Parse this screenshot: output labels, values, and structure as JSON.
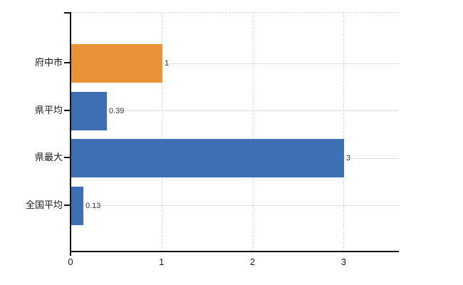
{
  "chart": {
    "background_color": "#ffffff",
    "axis_color": "#111111",
    "horizontal_gridline_color": "#dce1dc",
    "vertical_gridline_color": "#d6d9de",
    "category_label_color": "#1a1a1a",
    "value_label_color": "#333333"
  },
  "chart_data": {
    "type": "bar",
    "orientation": "horizontal",
    "title": "",
    "categories": [
      "府中市",
      "県平均",
      "県最大",
      "全国平均"
    ],
    "values": [
      1,
      0.39,
      3,
      0.13
    ],
    "value_labels": [
      "1",
      "0.39",
      "3",
      "0.13"
    ],
    "bar_colors": [
      "#ec9236",
      "#3d6fb2",
      "#3d6fb2",
      "#3d6fb2"
    ],
    "accent_orange": "#ec9236",
    "accent_blue": "#3d6fb2",
    "x_ticks": [
      0,
      1,
      2,
      3
    ],
    "x_tick_labels": [
      "0",
      "1",
      "2",
      "3"
    ],
    "xlim": [
      0,
      3.6
    ],
    "xlabel": "",
    "ylabel": "",
    "grid": "on",
    "legend": "none"
  }
}
